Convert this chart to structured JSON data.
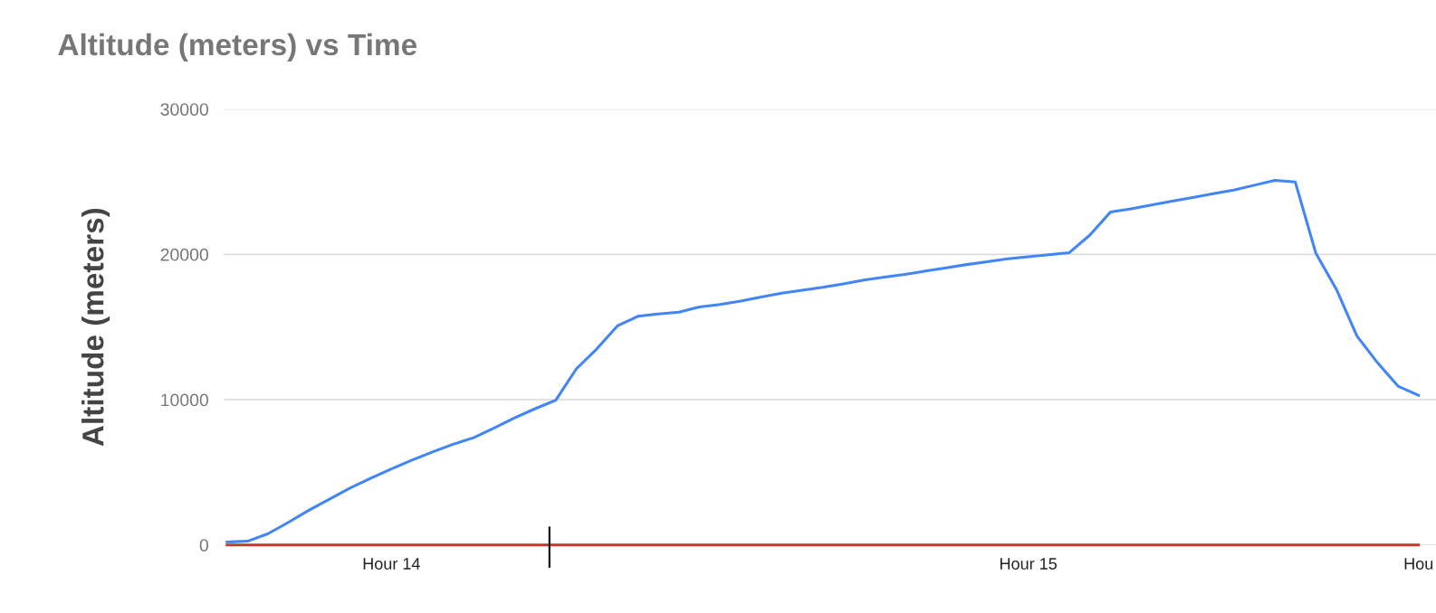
{
  "chart_data": {
    "type": "line",
    "title": "Altitude (meters) vs Time",
    "ylabel": "Altitude (meters)",
    "categories": [
      null,
      null,
      null,
      null,
      null,
      null,
      null,
      null,
      "Hour 14",
      null,
      null,
      null,
      null,
      null,
      null,
      null,
      null,
      null,
      null,
      null,
      null,
      null,
      null,
      null,
      null,
      null,
      null,
      null,
      null,
      null,
      null,
      null,
      null,
      null,
      null,
      null,
      null,
      null,
      null,
      "Hour 15",
      null,
      null,
      null,
      null,
      null,
      null,
      null,
      null,
      null,
      null,
      null,
      null,
      null,
      null,
      null,
      null,
      null,
      null,
      "Hou"
    ],
    "series": [
      {
        "color": "#4285f4",
        "values": [
          200,
          260,
          780,
          1570,
          2400,
          3170,
          3930,
          4600,
          5240,
          5840,
          6400,
          6930,
          7380,
          8050,
          8750,
          9380,
          9960,
          12120,
          13500,
          15080,
          15740,
          15900,
          16030,
          16380,
          16560,
          16780,
          17070,
          17330,
          17530,
          17730,
          17970,
          18230,
          18440,
          18620,
          18850,
          19080,
          19300,
          19500,
          19690,
          19830,
          19980,
          20120,
          21330,
          22910,
          23140,
          23400,
          23660,
          23920,
          24170,
          24430,
          24760,
          25100,
          24980,
          20080,
          17600,
          14380,
          12550,
          10930,
          10300
        ]
      },
      {
        "color": "#c0392b",
        "values": [
          0,
          0,
          0,
          0,
          0,
          0,
          0,
          0,
          0,
          0,
          0,
          0,
          0,
          0,
          0,
          0,
          0,
          0,
          0,
          0,
          0,
          0,
          0,
          0,
          0,
          0,
          0,
          0,
          0,
          0,
          0,
          0,
          0,
          0,
          0,
          0,
          0,
          0,
          0,
          0,
          0,
          0,
          0,
          0,
          0,
          0,
          0,
          0,
          0,
          0,
          0,
          0,
          0,
          0,
          0,
          0,
          0,
          0,
          0
        ]
      }
    ],
    "ylim": [
      0,
      30000
    ],
    "yticks": [
      0,
      10000,
      20000,
      30000
    ],
    "grid": "y",
    "marker": "none",
    "line_style": "solid"
  }
}
